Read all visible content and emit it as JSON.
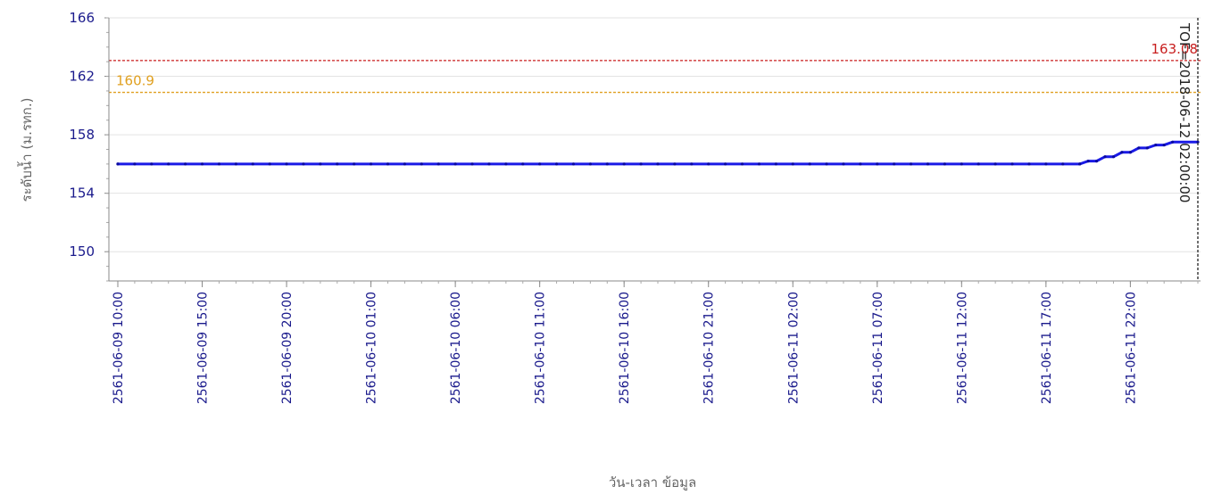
{
  "chart_data": {
    "type": "line",
    "ylabel": "ระดับน้ำ (ม.รทก.)",
    "xlabel": "วัน-เวลา ข้อมูล",
    "ylim": [
      148,
      166
    ],
    "yticks": [
      166,
      162,
      158,
      154,
      150
    ],
    "x_range": [
      "2018-06-09 10:00",
      "2018-06-12 02:00"
    ],
    "x_ticks": [
      {
        "t": "2018-06-09 10:00",
        "label": "2561-06-09 10:00"
      },
      {
        "t": "2018-06-09 15:00",
        "label": "2561-06-09 15:00"
      },
      {
        "t": "2018-06-09 20:00",
        "label": "2561-06-09 20:00"
      },
      {
        "t": "2018-06-10 01:00",
        "label": "2561-06-10 01:00"
      },
      {
        "t": "2018-06-10 06:00",
        "label": "2561-06-10 06:00"
      },
      {
        "t": "2018-06-10 11:00",
        "label": "2561-06-10 11:00"
      },
      {
        "t": "2018-06-10 16:00",
        "label": "2561-06-10 16:00"
      },
      {
        "t": "2018-06-10 21:00",
        "label": "2561-06-10 21:00"
      },
      {
        "t": "2018-06-11 02:00",
        "label": "2561-06-11 02:00"
      },
      {
        "t": "2018-06-11 07:00",
        "label": "2561-06-11 07:00"
      },
      {
        "t": "2018-06-11 12:00",
        "label": "2561-06-11 12:00"
      },
      {
        "t": "2018-06-11 17:00",
        "label": "2561-06-11 17:00"
      },
      {
        "t": "2018-06-11 22:00",
        "label": "2561-06-11 22:00"
      }
    ],
    "grid": true,
    "legend": "none",
    "series": [
      {
        "color": "#1a1ae6",
        "points": [
          {
            "t": "2018-06-09 10:00",
            "y": 156.0
          },
          {
            "t": "2018-06-11 19:00",
            "y": 156.0
          },
          {
            "t": "2018-06-11 19:30",
            "y": 156.2
          },
          {
            "t": "2018-06-11 20:00",
            "y": 156.2
          },
          {
            "t": "2018-06-11 20:30",
            "y": 156.5
          },
          {
            "t": "2018-06-11 21:00",
            "y": 156.5
          },
          {
            "t": "2018-06-11 21:30",
            "y": 156.8
          },
          {
            "t": "2018-06-11 22:00",
            "y": 156.8
          },
          {
            "t": "2018-06-11 22:30",
            "y": 157.1
          },
          {
            "t": "2018-06-11 23:00",
            "y": 157.1
          },
          {
            "t": "2018-06-11 23:30",
            "y": 157.3
          },
          {
            "t": "2018-06-12 00:00",
            "y": 157.3
          },
          {
            "t": "2018-06-12 00:30",
            "y": 157.5
          },
          {
            "t": "2018-06-12 02:00",
            "y": 157.5
          }
        ]
      }
    ],
    "reference_lines": [
      {
        "value": 163.08,
        "label": "163.08",
        "color": "#c81e1e"
      },
      {
        "value": 160.9,
        "label": "160.9",
        "color": "#e0a020"
      }
    ],
    "current_time_marker": {
      "t": "2018-06-12 02:00",
      "label": "TOF=2018-06-12 02:00:00",
      "color": "#222222"
    }
  }
}
